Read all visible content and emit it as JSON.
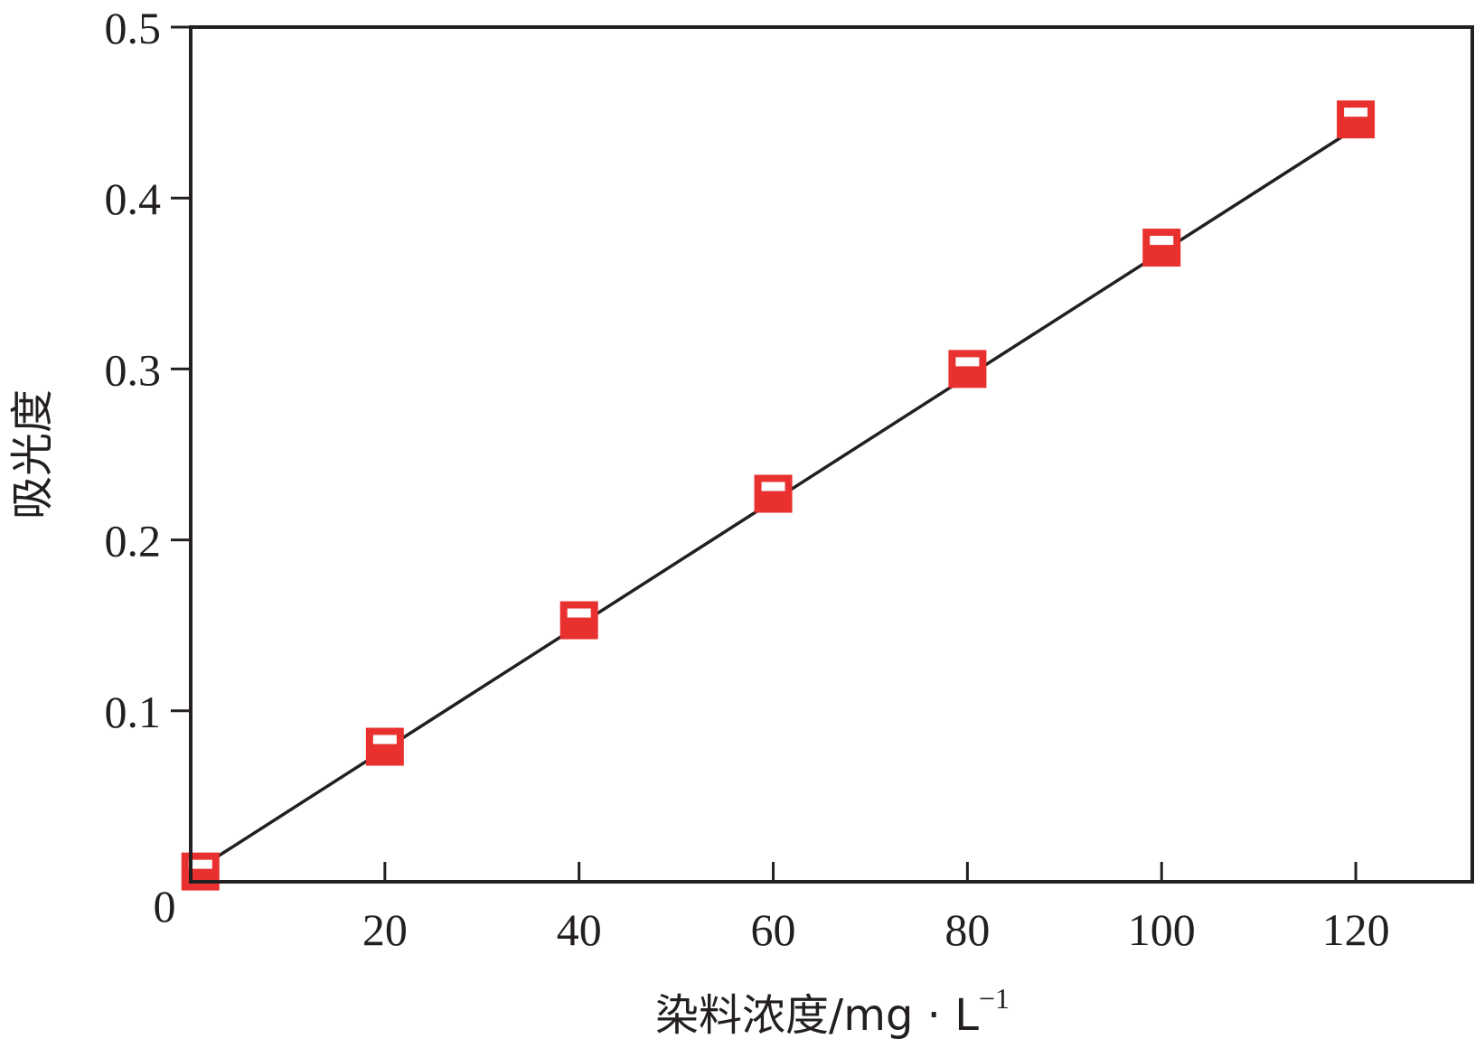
{
  "chart_data": {
    "type": "scatter",
    "xlabel": "染料浓度/mg · L",
    "xlabel_superscript": "−1",
    "ylabel": "吸光度",
    "xlim": [
      0,
      132
    ],
    "ylim": [
      0,
      0.5
    ],
    "x_ticks": [
      "20",
      "40",
      "60",
      "80",
      "100",
      "120"
    ],
    "y_ticks": [
      "0.1",
      "0.2",
      "0.3",
      "0.4",
      "0.5"
    ],
    "origin_label": "0",
    "grid": false,
    "series": [
      {
        "x": [
          1,
          20,
          40,
          60,
          80,
          100,
          120
        ],
        "y": [
          0.006,
          0.079,
          0.153,
          0.227,
          0.3,
          0.371,
          0.446
        ],
        "marker": "half-filled-square",
        "color": "#e8312f"
      }
    ],
    "fit_line": {
      "x": [
        2,
        120
      ],
      "y": [
        0.012,
        0.441
      ],
      "color": "#231f20"
    }
  }
}
